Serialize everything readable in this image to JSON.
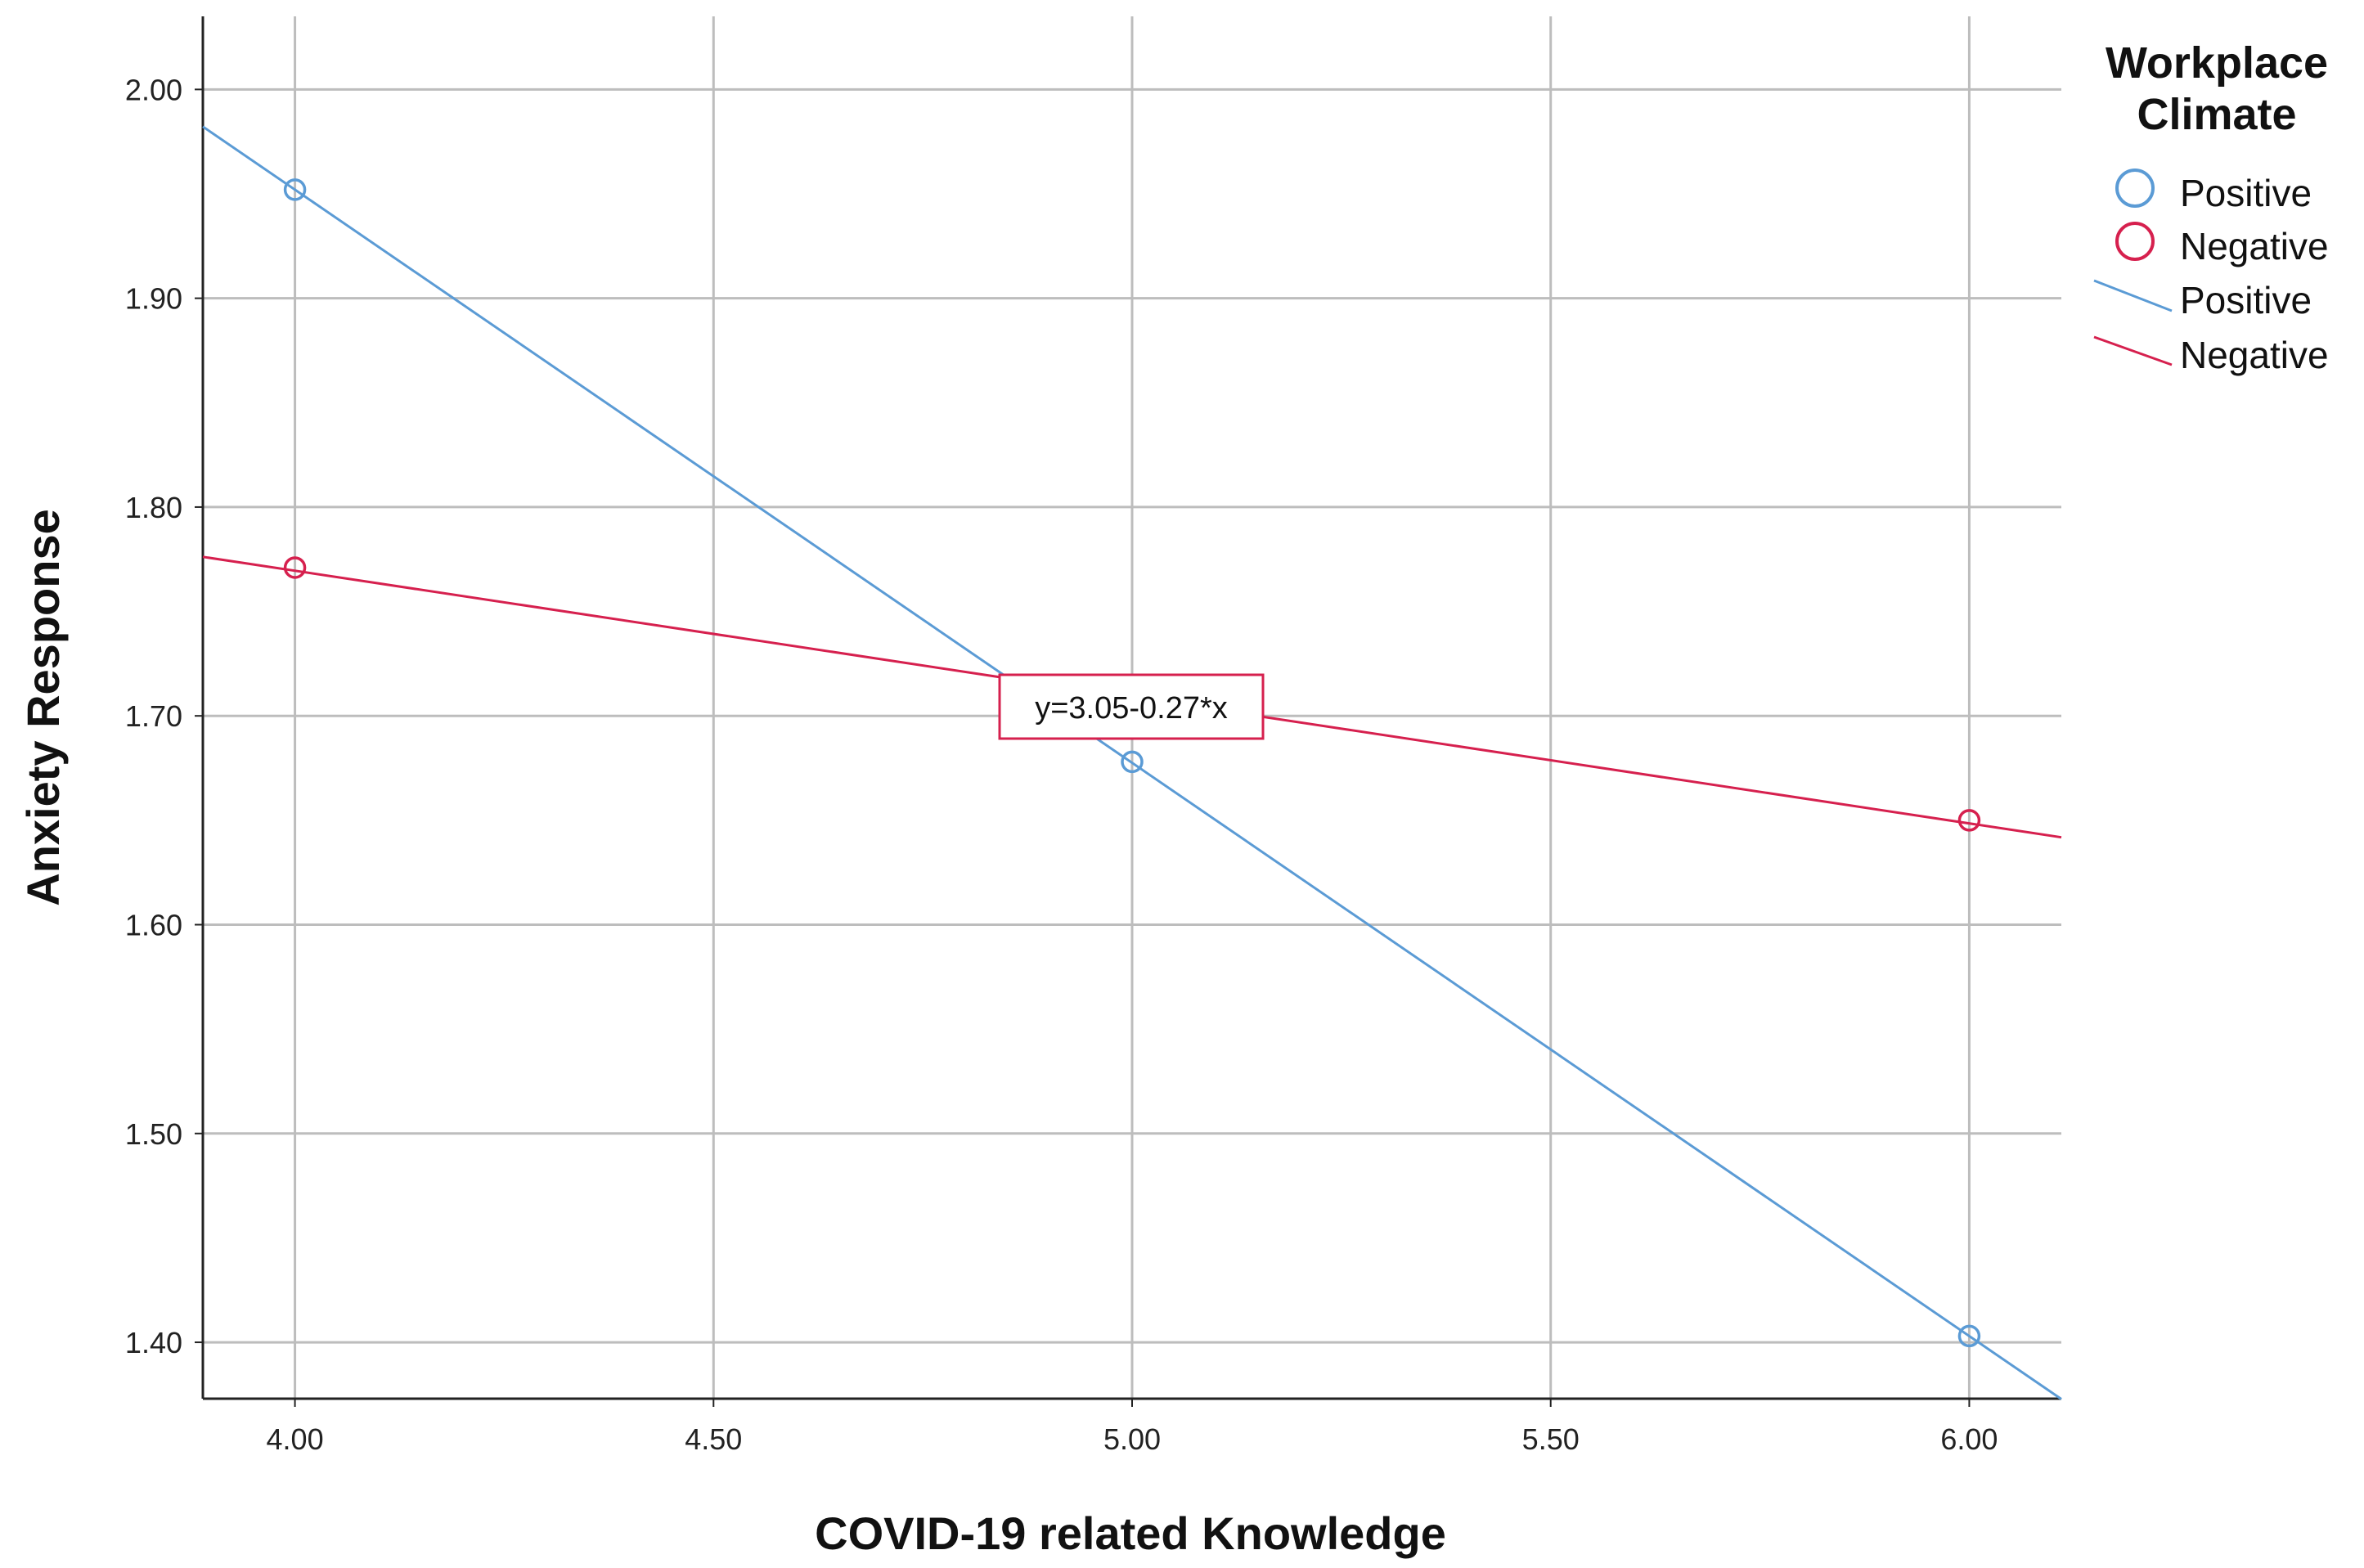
{
  "chart_data": {
    "type": "line",
    "title": "",
    "xlabel": "COVID-19 related Knowledge",
    "ylabel": "Anxiety Response",
    "xlim": [
      3.89,
      6.11
    ],
    "ylim": [
      1.373,
      2.035
    ],
    "xticks": [
      4.0,
      4.5,
      5.0,
      5.5,
      6.0
    ],
    "xtick_labels": [
      "4.00",
      "4.50",
      "5.00",
      "5.50",
      "6.00"
    ],
    "yticks": [
      1.4,
      1.5,
      1.6,
      1.7,
      1.8,
      1.9,
      2.0
    ],
    "ytick_labels": [
      "1.40",
      "1.50",
      "1.60",
      "1.70",
      "1.80",
      "1.90",
      "2.00"
    ],
    "grid": true,
    "legend": {
      "title_lines": [
        "Workplace",
        "Climate"
      ],
      "placement": "right",
      "entries": [
        {
          "label": "Positive",
          "kind": "marker",
          "color": "#5b9bd5"
        },
        {
          "label": "Negative",
          "kind": "marker",
          "color": "#d6204e"
        },
        {
          "label": "Positive",
          "kind": "line",
          "color": "#5b9bd5"
        },
        {
          "label": "Negative",
          "kind": "line",
          "color": "#d6204e"
        }
      ]
    },
    "series": [
      {
        "name": "Positive",
        "color": "#5b9bd5",
        "points": [
          {
            "x": 4.0,
            "y": 1.952
          },
          {
            "x": 5.0,
            "y": 1.678
          },
          {
            "x": 6.0,
            "y": 1.403
          }
        ],
        "fit_line": {
          "intercept": 3.05,
          "slope": -0.2745
        }
      },
      {
        "name": "Negative",
        "color": "#d6204e",
        "points": [
          {
            "x": 4.0,
            "y": 1.771
          },
          {
            "x": 6.0,
            "y": 1.65
          }
        ],
        "fit_line": {
          "intercept": 2.0115,
          "slope": -0.0605
        }
      }
    ],
    "annotation": {
      "text": "y=3.05-0.27*x",
      "color": "#d6204e"
    }
  },
  "colors": {
    "grid": "#bdbdbd",
    "axis": "#222222"
  }
}
